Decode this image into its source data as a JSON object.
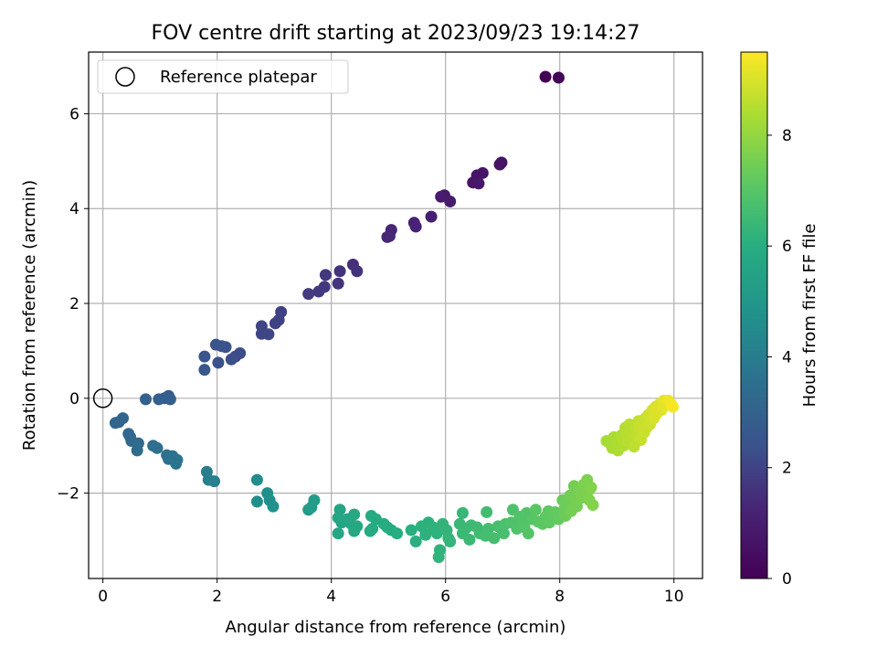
{
  "chart_data": {
    "type": "scatter",
    "title": "FOV centre drift starting at 2023/09/23 19:14:27",
    "xlabel": "Angular distance from reference (arcmin)",
    "ylabel": "Rotation from reference (arcmin)",
    "xlim": [
      -0.25,
      10.5
    ],
    "ylim": [
      -3.8,
      7.3
    ],
    "xticks": [
      0,
      2,
      4,
      6,
      8,
      10
    ],
    "yticks": [
      -2,
      0,
      2,
      4,
      6
    ],
    "grid": true,
    "legend": {
      "position": "top-left",
      "entries": [
        "Reference platepar"
      ]
    },
    "reference_point": {
      "x": 0,
      "y": 0,
      "label": "Reference platepar"
    },
    "colorbar": {
      "label": "Hours from first FF file",
      "colormap": "viridis",
      "range": [
        0,
        9.5
      ],
      "ticks": [
        0,
        2,
        4,
        6,
        8
      ]
    },
    "points": [
      [
        7.75,
        6.78,
        0.05
      ],
      [
        7.98,
        6.76,
        0.1
      ],
      [
        6.98,
        4.97,
        0.6
      ],
      [
        6.95,
        4.93,
        0.62
      ],
      [
        6.65,
        4.75,
        0.7
      ],
      [
        6.55,
        4.7,
        0.72
      ],
      [
        6.48,
        4.55,
        0.75
      ],
      [
        6.58,
        4.53,
        0.78
      ],
      [
        5.98,
        4.28,
        0.9
      ],
      [
        5.92,
        4.25,
        0.92
      ],
      [
        6.08,
        4.15,
        0.95
      ],
      [
        5.75,
        3.83,
        1.05
      ],
      [
        5.45,
        3.7,
        1.15
      ],
      [
        5.48,
        3.62,
        1.18
      ],
      [
        5.05,
        3.55,
        1.25
      ],
      [
        5.02,
        3.42,
        1.28
      ],
      [
        4.98,
        3.4,
        1.3
      ],
      [
        4.38,
        2.82,
        1.5
      ],
      [
        4.45,
        2.68,
        1.55
      ],
      [
        4.15,
        2.68,
        1.58
      ],
      [
        4.12,
        2.42,
        1.62
      ],
      [
        3.9,
        2.6,
        1.7
      ],
      [
        3.88,
        2.35,
        1.73
      ],
      [
        3.78,
        2.25,
        1.78
      ],
      [
        3.6,
        2.2,
        1.8
      ],
      [
        3.12,
        1.82,
        1.95
      ],
      [
        3.08,
        1.65,
        1.98
      ],
      [
        3.02,
        1.58,
        2.0
      ],
      [
        2.78,
        1.52,
        2.05
      ],
      [
        2.78,
        1.36,
        2.08
      ],
      [
        2.9,
        1.35,
        2.1
      ],
      [
        2.4,
        0.95,
        2.25
      ],
      [
        2.32,
        0.88,
        2.28
      ],
      [
        2.25,
        0.82,
        2.3
      ],
      [
        2.02,
        0.75,
        2.35
      ],
      [
        1.98,
        1.13,
        2.4
      ],
      [
        2.08,
        1.1,
        2.42
      ],
      [
        2.15,
        1.08,
        2.44
      ],
      [
        1.78,
        0.88,
        2.5
      ],
      [
        1.78,
        0.6,
        2.55
      ],
      [
        1.15,
        0.05,
        2.8
      ],
      [
        1.18,
        -0.02,
        2.83
      ],
      [
        1.08,
        0.0,
        2.86
      ],
      [
        0.98,
        -0.02,
        2.88
      ],
      [
        0.75,
        -0.02,
        2.95
      ],
      [
        0.35,
        -0.42,
        3.1
      ],
      [
        0.28,
        -0.5,
        3.12
      ],
      [
        0.22,
        -0.52,
        3.15
      ],
      [
        0.45,
        -0.75,
        3.2
      ],
      [
        0.48,
        -0.82,
        3.22
      ],
      [
        0.5,
        -0.9,
        3.25
      ],
      [
        0.62,
        -0.95,
        3.3
      ],
      [
        0.6,
        -1.1,
        3.33
      ],
      [
        0.88,
        -1.0,
        3.45
      ],
      [
        0.95,
        -1.05,
        3.48
      ],
      [
        1.12,
        -1.2,
        3.55
      ],
      [
        1.15,
        -1.28,
        3.58
      ],
      [
        1.22,
        -1.22,
        3.6
      ],
      [
        1.3,
        -1.3,
        3.63
      ],
      [
        1.28,
        -1.38,
        3.65
      ],
      [
        1.82,
        -1.55,
        4.05
      ],
      [
        1.85,
        -1.72,
        4.1
      ],
      [
        1.95,
        -1.75,
        4.12
      ],
      [
        2.7,
        -1.72,
        4.6
      ],
      [
        2.7,
        -2.18,
        4.65
      ],
      [
        2.88,
        -2.0,
        4.7
      ],
      [
        2.92,
        -2.15,
        4.72
      ],
      [
        2.98,
        -2.28,
        4.75
      ],
      [
        3.6,
        -2.35,
        5.2
      ],
      [
        3.65,
        -2.3,
        5.22
      ],
      [
        3.7,
        -2.15,
        5.25
      ],
      [
        4.15,
        -2.35,
        5.6
      ],
      [
        4.12,
        -2.52,
        5.62
      ],
      [
        4.18,
        -2.62,
        5.65
      ],
      [
        4.12,
        -2.85,
        5.68
      ],
      [
        4.28,
        -2.55,
        5.7
      ],
      [
        4.35,
        -2.65,
        5.72
      ],
      [
        4.4,
        -2.45,
        5.73
      ],
      [
        4.45,
        -2.7,
        5.75
      ],
      [
        4.4,
        -2.8,
        5.76
      ],
      [
        4.7,
        -2.48,
        5.85
      ],
      [
        4.78,
        -2.55,
        5.87
      ],
      [
        4.72,
        -2.75,
        5.88
      ],
      [
        4.68,
        -2.8,
        5.9
      ],
      [
        4.92,
        -2.65,
        5.92
      ],
      [
        4.98,
        -2.72,
        5.94
      ],
      [
        5.05,
        -2.78,
        5.96
      ],
      [
        5.15,
        -2.85,
        5.98
      ],
      [
        5.4,
        -2.78,
        6.05
      ],
      [
        5.48,
        -3.02,
        6.08
      ],
      [
        5.58,
        -2.7,
        6.1
      ],
      [
        5.7,
        -2.62,
        6.12
      ],
      [
        5.65,
        -2.88,
        6.14
      ],
      [
        5.78,
        -2.72,
        6.16
      ],
      [
        5.85,
        -2.85,
        6.18
      ],
      [
        5.9,
        -3.2,
        6.2
      ],
      [
        5.88,
        -3.35,
        6.22
      ],
      [
        5.95,
        -2.65,
        6.24
      ],
      [
        6.02,
        -2.78,
        6.26
      ],
      [
        6.05,
        -2.95,
        6.28
      ],
      [
        6.08,
        -3.02,
        6.3
      ],
      [
        6.3,
        -2.42,
        6.38
      ],
      [
        6.25,
        -2.65,
        6.4
      ],
      [
        6.3,
        -2.85,
        6.42
      ],
      [
        6.35,
        -2.75,
        6.44
      ],
      [
        6.42,
        -2.98,
        6.46
      ],
      [
        6.45,
        -2.68,
        6.48
      ],
      [
        6.55,
        -2.72,
        6.5
      ],
      [
        6.6,
        -2.85,
        6.52
      ],
      [
        6.72,
        -2.4,
        6.6
      ],
      [
        6.75,
        -2.75,
        6.62
      ],
      [
        6.7,
        -2.9,
        6.64
      ],
      [
        6.85,
        -2.95,
        6.66
      ],
      [
        6.92,
        -2.7,
        6.68
      ],
      [
        6.98,
        -2.75,
        6.7
      ],
      [
        7.02,
        -2.85,
        6.72
      ],
      [
        7.05,
        -2.65,
        6.74
      ],
      [
        7.18,
        -2.35,
        6.82
      ],
      [
        7.15,
        -2.62,
        6.84
      ],
      [
        7.25,
        -2.75,
        6.86
      ],
      [
        7.3,
        -2.5,
        6.88
      ],
      [
        7.35,
        -2.62,
        6.9
      ],
      [
        7.42,
        -2.42,
        6.92
      ],
      [
        7.38,
        -2.72,
        6.94
      ],
      [
        7.45,
        -2.85,
        6.96
      ],
      [
        7.52,
        -2.55,
        6.98
      ],
      [
        7.58,
        -2.35,
        7.05
      ],
      [
        7.62,
        -2.6,
        7.07
      ],
      [
        7.7,
        -2.65,
        7.1
      ],
      [
        7.75,
        -2.5,
        7.12
      ],
      [
        7.8,
        -2.38,
        7.14
      ],
      [
        7.82,
        -2.62,
        7.16
      ],
      [
        7.88,
        -2.52,
        7.18
      ],
      [
        7.92,
        -2.4,
        7.2
      ],
      [
        7.98,
        -2.55,
        7.22
      ],
      [
        8.05,
        -2.15,
        7.35
      ],
      [
        8.08,
        -2.35,
        7.38
      ],
      [
        8.1,
        -2.48,
        7.4
      ],
      [
        8.15,
        -2.2,
        7.43
      ],
      [
        8.18,
        -2.05,
        7.46
      ],
      [
        8.2,
        -2.38,
        7.48
      ],
      [
        8.25,
        -1.85,
        7.5
      ],
      [
        8.28,
        -2.15,
        7.52
      ],
      [
        8.3,
        -2.28,
        7.54
      ],
      [
        8.35,
        -1.95,
        7.58
      ],
      [
        8.38,
        -2.1,
        7.6
      ],
      [
        8.42,
        -1.82,
        7.62
      ],
      [
        8.45,
        -2.05,
        7.64
      ],
      [
        8.48,
        -1.72,
        7.66
      ],
      [
        8.5,
        -1.95,
        7.68
      ],
      [
        8.52,
        -2.15,
        7.7
      ],
      [
        8.55,
        -1.88,
        7.72
      ],
      [
        8.58,
        -2.25,
        7.74
      ],
      [
        8.82,
        -0.9,
        8.3
      ],
      [
        8.88,
        -0.95,
        8.32
      ],
      [
        8.92,
        -1.05,
        8.34
      ],
      [
        8.95,
        -0.82,
        8.36
      ],
      [
        9.0,
        -0.98,
        8.38
      ],
      [
        9.02,
        -1.1,
        8.4
      ],
      [
        9.08,
        -0.78,
        8.42
      ],
      [
        9.1,
        -0.88,
        8.44
      ],
      [
        9.12,
        -1.0,
        8.46
      ],
      [
        9.15,
        -0.62,
        8.5
      ],
      [
        9.18,
        -0.75,
        8.52
      ],
      [
        9.2,
        -0.92,
        8.54
      ],
      [
        9.22,
        -0.55,
        8.56
      ],
      [
        9.25,
        -0.7,
        8.58
      ],
      [
        9.28,
        -0.85,
        8.6
      ],
      [
        9.3,
        -1.02,
        8.62
      ],
      [
        9.32,
        -0.6,
        8.64
      ],
      [
        9.35,
        -0.78,
        8.66
      ],
      [
        9.38,
        -0.48,
        8.7
      ],
      [
        9.4,
        -0.65,
        8.72
      ],
      [
        9.42,
        -0.88,
        8.74
      ],
      [
        9.45,
        -0.55,
        8.76
      ],
      [
        9.48,
        -0.72,
        8.78
      ],
      [
        9.5,
        -0.42,
        8.8
      ],
      [
        9.52,
        -0.62,
        8.82
      ],
      [
        9.55,
        -0.35,
        8.84
      ],
      [
        9.58,
        -0.55,
        8.86
      ],
      [
        9.62,
        -0.25,
        8.95
      ],
      [
        9.65,
        -0.42,
        8.98
      ],
      [
        9.68,
        -0.18,
        9.0
      ],
      [
        9.7,
        -0.32,
        9.03
      ],
      [
        9.75,
        -0.12,
        9.06
      ],
      [
        9.78,
        -0.25,
        9.1
      ],
      [
        9.82,
        -0.05,
        9.15
      ],
      [
        9.85,
        -0.15,
        9.2
      ],
      [
        9.9,
        -0.05,
        9.3
      ],
      [
        9.95,
        -0.12,
        9.35
      ],
      [
        9.98,
        -0.18,
        9.4
      ]
    ]
  }
}
